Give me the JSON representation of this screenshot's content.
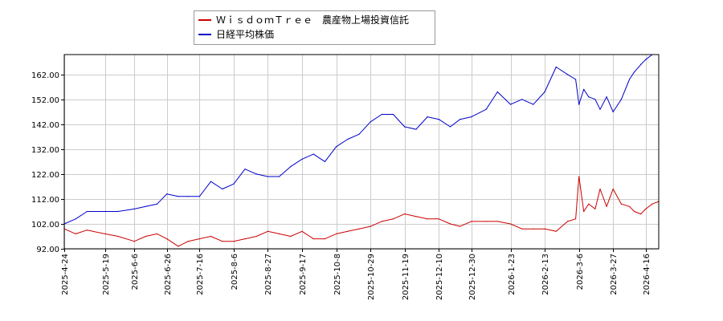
{
  "chart_data": {
    "type": "line",
    "title": "",
    "xlabel": "",
    "ylabel": "",
    "ylim": [
      92,
      170
    ],
    "y_ticks": [
      "92.00",
      "102.00",
      "112.00",
      "122.00",
      "132.00",
      "142.00",
      "152.00",
      "162.00"
    ],
    "x_ticks": [
      "2025-4-24",
      "2025-5-19",
      "2025-6-6",
      "2025-6-26",
      "2025-7-16",
      "2025-8-6",
      "2025-8-27",
      "2025-9-17",
      "2025-10-8",
      "2025-10-29",
      "2025-11-19",
      "2025-12-10",
      "2025-12-30",
      "2026-1-23",
      "2026-2-13",
      "2026-3-6",
      "2026-3-27",
      "2026-4-16"
    ],
    "grid": true,
    "legend_position": "top-center",
    "series": [
      {
        "name": "ＷｉｓｄｏｍＴｒｅｅ　農産物上場投資信託",
        "color": "#cc0000",
        "x": [
          "2025-4-24",
          "2025-5-1",
          "2025-5-8",
          "2025-5-19",
          "2025-5-27",
          "2025-6-6",
          "2025-6-13",
          "2025-6-20",
          "2025-6-26",
          "2025-7-3",
          "2025-7-9",
          "2025-7-16",
          "2025-7-23",
          "2025-7-30",
          "2025-8-6",
          "2025-8-13",
          "2025-8-20",
          "2025-8-27",
          "2025-9-3",
          "2025-9-10",
          "2025-9-17",
          "2025-9-24",
          "2025-10-1",
          "2025-10-8",
          "2025-10-15",
          "2025-10-22",
          "2025-10-29",
          "2025-11-5",
          "2025-11-12",
          "2025-11-19",
          "2025-11-26",
          "2025-12-3",
          "2025-12-10",
          "2025-12-17",
          "2025-12-23",
          "2025-12-30",
          "2026-1-8",
          "2026-1-15",
          "2026-1-23",
          "2026-1-30",
          "2026-2-6",
          "2026-2-13",
          "2026-2-20",
          "2026-2-27",
          "2026-3-4",
          "2026-3-6",
          "2026-3-9",
          "2026-3-12",
          "2026-3-16",
          "2026-3-19",
          "2026-3-23",
          "2026-3-27",
          "2026-4-1",
          "2026-4-6",
          "2026-4-9",
          "2026-4-13",
          "2026-4-16",
          "2026-4-20",
          "2026-4-24"
        ],
        "values": [
          100,
          98,
          99.5,
          98,
          97,
          95,
          97,
          98,
          96,
          93,
          95,
          96,
          97,
          95,
          95,
          96,
          97,
          99,
          98,
          97,
          99,
          96,
          96,
          98,
          99,
          100,
          101,
          103,
          104,
          106,
          105,
          104,
          104,
          102,
          101,
          103,
          103,
          103,
          102,
          100,
          100,
          100,
          99,
          103,
          104,
          121,
          107,
          110,
          108,
          116,
          109,
          116,
          110,
          109,
          107,
          106,
          108,
          110,
          111
        ]
      },
      {
        "name": "日経平均株価",
        "color": "#0000cc",
        "x": [
          "2025-4-24",
          "2025-5-1",
          "2025-5-8",
          "2025-5-19",
          "2025-5-27",
          "2025-6-6",
          "2025-6-13",
          "2025-6-20",
          "2025-6-26",
          "2025-7-3",
          "2025-7-9",
          "2025-7-16",
          "2025-7-23",
          "2025-7-30",
          "2025-8-6",
          "2025-8-13",
          "2025-8-20",
          "2025-8-27",
          "2025-9-3",
          "2025-9-10",
          "2025-9-17",
          "2025-9-24",
          "2025-10-1",
          "2025-10-8",
          "2025-10-15",
          "2025-10-22",
          "2025-10-29",
          "2025-11-5",
          "2025-11-12",
          "2025-11-19",
          "2025-11-26",
          "2025-12-3",
          "2025-12-10",
          "2025-12-17",
          "2025-12-23",
          "2025-12-30",
          "2026-1-8",
          "2026-1-15",
          "2026-1-23",
          "2026-1-30",
          "2026-2-6",
          "2026-2-13",
          "2026-2-20",
          "2026-2-27",
          "2026-3-4",
          "2026-3-6",
          "2026-3-9",
          "2026-3-12",
          "2026-3-16",
          "2026-3-19",
          "2026-3-23",
          "2026-3-27",
          "2026-4-1",
          "2026-4-6",
          "2026-4-9",
          "2026-4-13",
          "2026-4-16",
          "2026-4-20",
          "2026-4-24"
        ],
        "values": [
          102,
          104,
          107,
          107,
          107,
          108,
          109,
          110,
          114,
          113,
          113,
          113,
          119,
          116,
          118,
          124,
          122,
          121,
          121,
          125,
          128,
          130,
          127,
          133,
          136,
          138,
          143,
          146,
          146,
          141,
          140,
          145,
          144,
          141,
          144,
          145,
          148,
          155,
          150,
          152,
          150,
          155,
          165,
          162,
          160,
          150,
          156,
          153,
          152,
          148,
          153,
          147,
          152,
          160,
          163,
          166,
          168,
          170,
          170
        ]
      }
    ]
  }
}
